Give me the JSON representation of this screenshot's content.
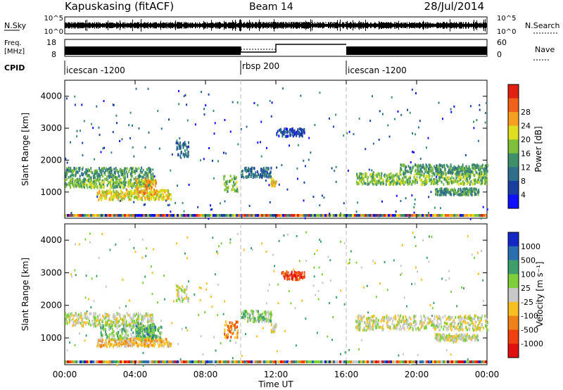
{
  "header": {
    "station": "Kapuskasing (fitACF)",
    "beam": "Beam 14",
    "date": "28/Jul/2014"
  },
  "strip_labels": {
    "nsky": "N.Sky",
    "nsky_ticks": [
      "10^5",
      "10^0"
    ],
    "nsearch": "N.Search",
    "nsearch_ticks": [
      "10^5",
      "10^0"
    ],
    "freq_line1": "Freq.",
    "freq_line2": "[MHz]",
    "freq_ticks": [
      "18",
      "8"
    ],
    "nave": "Nave",
    "nave_ticks": [
      "60",
      "0"
    ],
    "cpid": "CPID"
  },
  "cpid_segments": [
    {
      "start_hour": 0,
      "end_hour": 10,
      "label": "icescan -1200"
    },
    {
      "start_hour": 10,
      "end_hour": 16,
      "label": "rbsp 200"
    },
    {
      "start_hour": 16,
      "end_hour": 24,
      "label": "icescan -1200"
    }
  ],
  "chart_data": [
    {
      "type": "heatmap",
      "title": "Power",
      "ylabel": "Slant Range [km]",
      "colorbar_label": "Power [dB]",
      "ylim": [
        180,
        4500
      ],
      "yticks": [
        "1000",
        "2000",
        "3000",
        "4000"
      ],
      "xlim": [
        0,
        24
      ],
      "colorbar_ticks": [
        "4",
        "8",
        "12",
        "16",
        "20",
        "24",
        "28"
      ],
      "colorbar_colors": [
        "#1010ff",
        "#1a3fa0",
        "#2f6f8c",
        "#3f8f6a",
        "#7fbf3a",
        "#dfdf20",
        "#f7a020",
        "#f06018",
        "#e02010"
      ],
      "features": [
        {
          "x_start": 0.0,
          "x_end": 5.0,
          "range_center": 1600,
          "range_width": 400,
          "level": 3
        },
        {
          "x_start": 0.0,
          "x_end": 5.0,
          "range_center": 1300,
          "range_width": 250,
          "level": 4
        },
        {
          "x_start": 1.8,
          "x_end": 6.0,
          "range_center": 950,
          "range_width": 300,
          "level": 5
        },
        {
          "x_start": 4.0,
          "x_end": 5.2,
          "range_center": 1200,
          "range_width": 500,
          "level": 6
        },
        {
          "x_start": 6.3,
          "x_end": 7.0,
          "range_center": 2400,
          "range_width": 500,
          "level": 2
        },
        {
          "x_start": 9.0,
          "x_end": 9.8,
          "range_center": 1300,
          "range_width": 500,
          "level": 4
        },
        {
          "x_start": 10.0,
          "x_end": 11.7,
          "range_center": 1650,
          "range_width": 300,
          "level": 2
        },
        {
          "x_start": 11.7,
          "x_end": 12.0,
          "range_center": 1350,
          "range_width": 250,
          "level": 5
        },
        {
          "x_start": 12.0,
          "x_end": 13.6,
          "range_center": 2900,
          "range_width": 250,
          "level": 1
        },
        {
          "x_start": 16.5,
          "x_end": 24.0,
          "range_center": 1450,
          "range_width": 350,
          "level": 4
        },
        {
          "x_start": 19.0,
          "x_end": 24.0,
          "range_center": 1750,
          "range_width": 300,
          "level": 3
        },
        {
          "x_start": 21.0,
          "x_end": 23.5,
          "range_center": 1050,
          "range_width": 200,
          "level": 3
        }
      ]
    },
    {
      "type": "heatmap",
      "title": "Velocity",
      "ylabel": "Slant Range [km]",
      "colorbar_label": "Velocity [m s⁻¹]",
      "ylim": [
        180,
        4500
      ],
      "yticks": [
        "1000",
        "2000",
        "3000",
        "4000"
      ],
      "xlim": [
        0,
        24
      ],
      "xticks": [
        "00:00",
        "04:00",
        "08:00",
        "12:00",
        "16:00",
        "20:00",
        "00:00"
      ],
      "xlabel": "Time UT",
      "colorbar_ticks": [
        "1000",
        "500",
        "100",
        "25",
        "-25",
        "-100",
        "-500",
        "-1000"
      ],
      "colorbar_colors": [
        "#1428c8",
        "#2a6fb0",
        "#3f9f6a",
        "#7fcf3a",
        "#c8c8c8",
        "#f7c020",
        "#f08018",
        "#f04010",
        "#e01010"
      ],
      "features": [
        {
          "x_start": 0.0,
          "x_end": 5.0,
          "range_center": 1600,
          "range_width": 400,
          "level": 4
        },
        {
          "x_start": 2.0,
          "x_end": 5.5,
          "range_center": 1200,
          "range_width": 500,
          "level": 3
        },
        {
          "x_start": 4.0,
          "x_end": 5.2,
          "range_center": 1250,
          "range_width": 500,
          "level": 2
        },
        {
          "x_start": 1.8,
          "x_end": 6.0,
          "range_center": 900,
          "range_width": 250,
          "level": 5
        },
        {
          "x_start": 6.3,
          "x_end": 7.0,
          "range_center": 2400,
          "range_width": 500,
          "level": 4
        },
        {
          "x_start": 9.0,
          "x_end": 9.8,
          "range_center": 1300,
          "range_width": 500,
          "level": 6
        },
        {
          "x_start": 10.0,
          "x_end": 11.7,
          "range_center": 1700,
          "range_width": 350,
          "level": 3
        },
        {
          "x_start": 11.7,
          "x_end": 12.0,
          "range_center": 1350,
          "range_width": 250,
          "level": 4
        },
        {
          "x_start": 12.3,
          "x_end": 13.6,
          "range_center": 2950,
          "range_width": 250,
          "level": 7
        },
        {
          "x_start": 16.5,
          "x_end": 24.0,
          "range_center": 1500,
          "range_width": 450,
          "level": 4
        },
        {
          "x_start": 21.0,
          "x_end": 23.5,
          "range_center": 1050,
          "range_width": 200,
          "level": 4
        }
      ]
    }
  ]
}
